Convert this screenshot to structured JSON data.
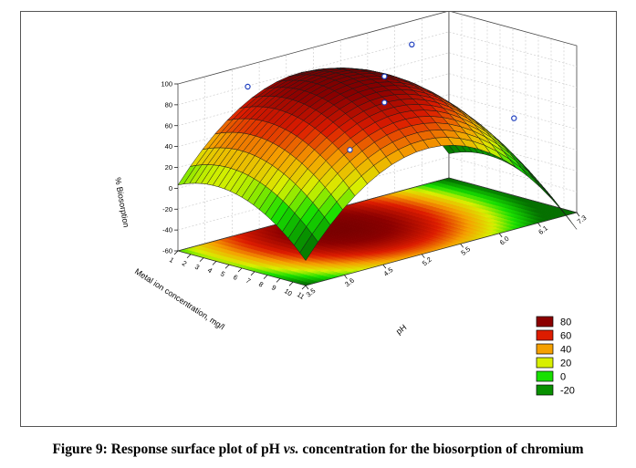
{
  "caption": {
    "lead": "Figure 9: Response surface plot of pH ",
    "vs": "vs.",
    "tail": " concentration for the biosorption of chromium"
  },
  "chart_data": {
    "type": "surface3d",
    "zlabel": "% Biosorption",
    "xlabel": "Metal ion concentration, mg/l",
    "ylabel": "pH",
    "x_ticks": [
      "1",
      "2",
      "3",
      "4",
      "5",
      "6",
      "7",
      "8",
      "9",
      "10",
      "11"
    ],
    "y_ticks": [
      "3.5",
      "3.6",
      "4.5",
      "5.2",
      "5.5",
      "6.0",
      "6.1",
      "7.3"
    ],
    "z_ticks": [
      "100",
      "80",
      "60",
      "40",
      "20",
      "0",
      "-20",
      "-40",
      "-60"
    ],
    "zlim": [
      -60,
      100
    ],
    "xlim": [
      1,
      11
    ],
    "ylim": [
      3.5,
      7.3
    ],
    "legend": {
      "placement": "bottom-right",
      "entries": [
        {
          "label": "80",
          "color": "#8b0000"
        },
        {
          "label": "60",
          "color": "#dd1c00"
        },
        {
          "label": "40",
          "color": "#f5a000"
        },
        {
          "label": "20",
          "color": "#d8ef00"
        },
        {
          "label": "0",
          "color": "#18e000"
        },
        {
          "label": "-20",
          "color": "#089000"
        }
      ]
    },
    "design_points": [
      {
        "x": 2,
        "y": 4.2,
        "z": 84
      },
      {
        "x": 2,
        "y": 6.5,
        "z": 86
      },
      {
        "x": 6,
        "y": 5.3,
        "z": 87
      },
      {
        "x": 6,
        "y": 5.3,
        "z": 62
      },
      {
        "x": 10,
        "y": 6.5,
        "z": 52
      },
      {
        "x": 10,
        "y": 4.2,
        "z": 40
      }
    ]
  }
}
